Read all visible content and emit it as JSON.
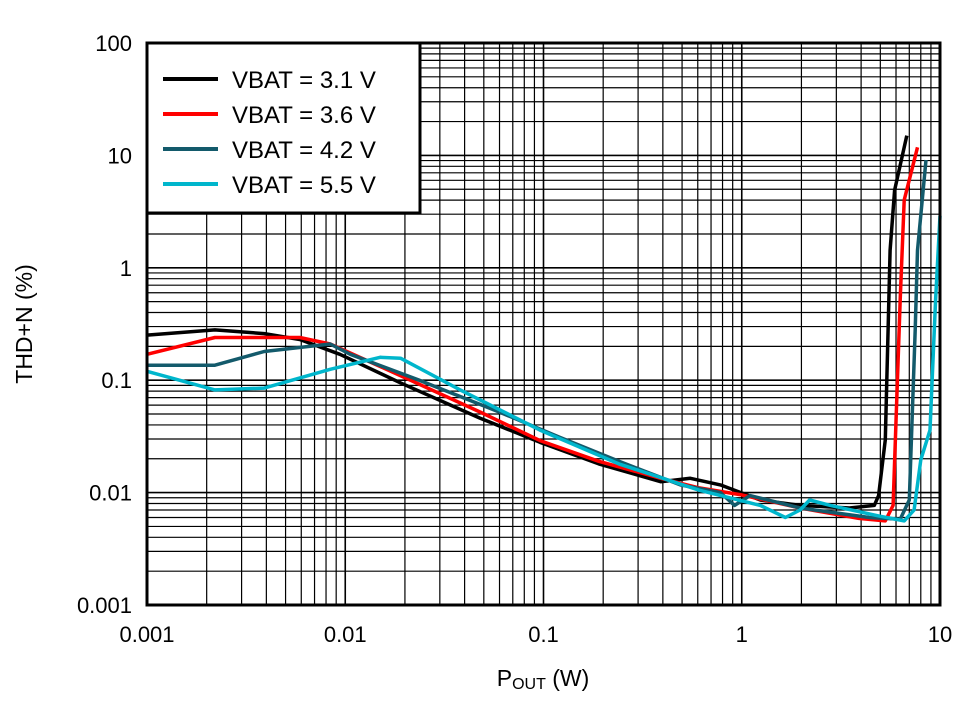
{
  "chart_data": {
    "type": "line",
    "title": "",
    "xlabel": {
      "main": "P",
      "sub": "OUT",
      "unit": " (W)"
    },
    "ylabel": "THD+N (%)",
    "xscale": "log",
    "yscale": "log",
    "xlim": [
      0.001,
      10
    ],
    "ylim": [
      0.001,
      100
    ],
    "grid": true,
    "legend_position": "top-left",
    "x_tick_labels": [
      "0.001",
      "0.01",
      "0.1",
      "1",
      "10"
    ],
    "y_tick_labels": [
      "0.001",
      "0.01",
      "0.1",
      "1",
      "10",
      "100"
    ],
    "series": [
      {
        "name": "VBAT = 3.1 V",
        "color": "#000000",
        "x": [
          0.001,
          0.0022,
          0.0039,
          0.0059,
          0.0094,
          0.0189,
          0.0478,
          0.096,
          0.19,
          0.39,
          0.55,
          0.78,
          1.24,
          1.97,
          3.5,
          4.66,
          4.9,
          5.3,
          5.6,
          5.9,
          6.8
        ],
        "y": [
          0.252,
          0.28,
          0.26,
          0.23,
          0.17,
          0.095,
          0.046,
          0.028,
          0.018,
          0.0125,
          0.0134,
          0.0117,
          0.0086,
          0.0077,
          0.0073,
          0.0077,
          0.0094,
          0.0295,
          1.43,
          4.9,
          15
        ]
      },
      {
        "name": "VBAT = 3.6 V",
        "color": "#ff0000",
        "x": [
          0.001,
          0.0022,
          0.0059,
          0.0084,
          0.0189,
          0.048,
          0.096,
          0.19,
          0.39,
          0.61,
          0.98,
          1.97,
          3.9,
          5.3,
          5.8,
          6.3,
          6.6,
          7.7
        ],
        "y": [
          0.17,
          0.24,
          0.24,
          0.21,
          0.11,
          0.052,
          0.029,
          0.019,
          0.0134,
          0.011,
          0.0096,
          0.0073,
          0.0059,
          0.0056,
          0.0077,
          0.52,
          4.0,
          11.8
        ]
      },
      {
        "name": "VBAT = 4.2 V",
        "color": "#135a6b",
        "x": [
          0.001,
          0.0022,
          0.0039,
          0.0084,
          0.0106,
          0.0236,
          0.06,
          0.121,
          0.24,
          0.49,
          0.78,
          0.92,
          1.1,
          1.97,
          4.4,
          6.3,
          7.0,
          7.5,
          7.7,
          8.5
        ],
        "y": [
          0.136,
          0.136,
          0.18,
          0.21,
          0.17,
          0.1,
          0.052,
          0.031,
          0.019,
          0.0117,
          0.01,
          0.0077,
          0.0094,
          0.0073,
          0.006,
          0.0058,
          0.0086,
          0.28,
          1.43,
          9.1
        ]
      },
      {
        "name": "VBAT = 5.5 V",
        "color": "#00b6cc",
        "x": [
          0.001,
          0.0022,
          0.0039,
          0.0084,
          0.015,
          0.019,
          0.038,
          0.096,
          0.24,
          0.61,
          1.24,
          1.66,
          1.97,
          2.2,
          2.8,
          4.9,
          6.6,
          7.4,
          8.0,
          8.9,
          9.5,
          10
        ],
        "y": [
          0.12,
          0.082,
          0.085,
          0.125,
          0.16,
          0.157,
          0.082,
          0.036,
          0.018,
          0.0105,
          0.0077,
          0.006,
          0.007,
          0.0086,
          0.0077,
          0.0062,
          0.0056,
          0.007,
          0.0196,
          0.036,
          0.52,
          2.9
        ]
      }
    ]
  }
}
